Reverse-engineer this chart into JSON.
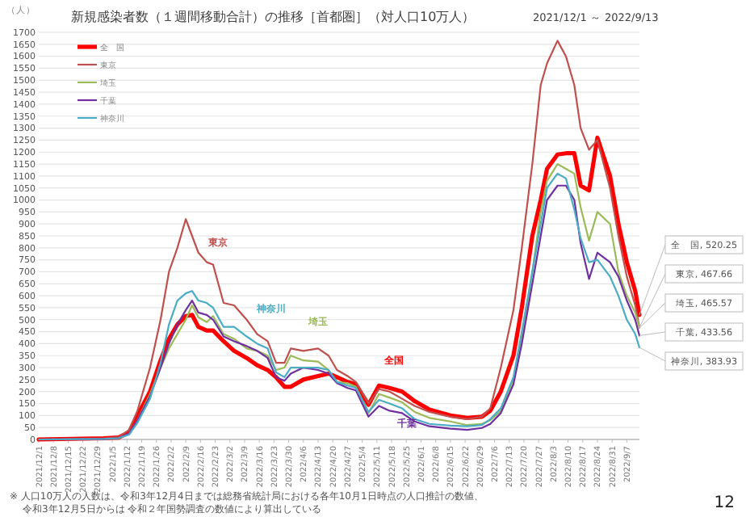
{
  "chart_data": {
    "type": "line",
    "title": "新規感染者数（１週間移動合計）の推移［首都圏］（対人口10万人）",
    "subtitle": "2021/12/1 ～ 2022/9/13",
    "ylabel": "（人）",
    "x": [
      "2021-12-01",
      "2022-01-01",
      "2022-01-08",
      "2022-01-13",
      "2022-01-17",
      "2022-01-23",
      "2022-01-28",
      "2022-02-01",
      "2022-02-05",
      "2022-02-09",
      "2022-02-12",
      "2022-02-15",
      "2022-02-19",
      "2022-02-22",
      "2022-02-27",
      "2022-03-04",
      "2022-03-10",
      "2022-03-15",
      "2022-03-20",
      "2022-03-24",
      "2022-03-28",
      "2022-03-31",
      "2022-04-06",
      "2022-04-13",
      "2022-04-18",
      "2022-04-22",
      "2022-04-27",
      "2022-05-01",
      "2022-05-07",
      "2022-05-12",
      "2022-05-17",
      "2022-05-23",
      "2022-05-29",
      "2022-06-05",
      "2022-06-15",
      "2022-06-23",
      "2022-06-30",
      "2022-07-04",
      "2022-07-09",
      "2022-07-15",
      "2022-07-19",
      "2022-07-24",
      "2022-07-28",
      "2022-07-31",
      "2022-08-05",
      "2022-08-09",
      "2022-08-13",
      "2022-08-16",
      "2022-08-20",
      "2022-08-24",
      "2022-08-30",
      "2022-09-03",
      "2022-09-07",
      "2022-09-11",
      "2022-09-13"
    ],
    "series": [
      {
        "name": "全　国",
        "color": "#ff0000",
        "values": [
          0,
          5,
          8,
          30,
          100,
          200,
          330,
          420,
          480,
          515,
          520,
          470,
          455,
          455,
          410,
          370,
          340,
          310,
          290,
          260,
          220,
          220,
          250,
          265,
          275,
          260,
          240,
          230,
          145,
          225,
          215,
          200,
          160,
          125,
          100,
          90,
          95,
          120,
          200,
          350,
          550,
          850,
          1000,
          1130,
          1190,
          1195,
          1195,
          1060,
          1040,
          1260,
          1100,
          900,
          740,
          620,
          520.25
        ]
      },
      {
        "name": "東京",
        "color": "#c0504d",
        "values": [
          0,
          5,
          10,
          40,
          120,
          300,
          500,
          700,
          800,
          920,
          850,
          780,
          740,
          730,
          570,
          560,
          500,
          440,
          410,
          320,
          320,
          380,
          370,
          380,
          350,
          290,
          265,
          240,
          150,
          210,
          200,
          170,
          140,
          115,
          95,
          85,
          95,
          130,
          300,
          540,
          800,
          1150,
          1480,
          1570,
          1665,
          1600,
          1480,
          1300,
          1210,
          1250,
          1050,
          850,
          680,
          560,
          467.66
        ]
      },
      {
        "name": "埼玉",
        "color": "#9bbb59",
        "values": [
          null,
          null,
          null,
          25,
          80,
          190,
          300,
          380,
          440,
          500,
          560,
          510,
          490,
          515,
          440,
          420,
          380,
          370,
          350,
          290,
          300,
          350,
          330,
          325,
          290,
          240,
          235,
          220,
          110,
          190,
          175,
          155,
          115,
          90,
          75,
          60,
          65,
          80,
          120,
          250,
          420,
          700,
          950,
          1080,
          1150,
          1130,
          1110,
          970,
          830,
          950,
          900,
          700,
          600,
          530,
          465.57
        ]
      },
      {
        "name": "千葉",
        "color": "#7030a0",
        "values": [
          0,
          2,
          5,
          25,
          80,
          180,
          300,
          400,
          480,
          540,
          580,
          530,
          520,
          500,
          430,
          410,
          390,
          370,
          340,
          260,
          245,
          275,
          300,
          290,
          275,
          235,
          215,
          205,
          95,
          140,
          120,
          110,
          75,
          55,
          45,
          40,
          48,
          65,
          110,
          230,
          400,
          650,
          850,
          1000,
          1060,
          1060,
          1000,
          820,
          670,
          780,
          740,
          680,
          580,
          500,
          433.56
        ]
      },
      {
        "name": "神奈川",
        "color": "#4bacc6",
        "values": [
          0,
          2,
          5,
          20,
          70,
          170,
          320,
          480,
          580,
          610,
          620,
          580,
          570,
          550,
          470,
          470,
          430,
          400,
          380,
          280,
          260,
          300,
          300,
          300,
          290,
          240,
          225,
          215,
          115,
          165,
          150,
          130,
          85,
          65,
          58,
          55,
          60,
          85,
          130,
          260,
          450,
          700,
          900,
          1050,
          1110,
          1090,
          960,
          840,
          740,
          750,
          680,
          600,
          500,
          440,
          383.93
        ]
      }
    ],
    "xlim": [
      "2021-12-01",
      "2022-09-13"
    ],
    "xticks": [
      {
        "value": "2021-12-01",
        "label": "2021/12/1"
      },
      {
        "value": "2021-12-08",
        "label": "2021/12/8"
      },
      {
        "value": "2021-12-15",
        "label": "2021/12/15"
      },
      {
        "value": "2021-12-22",
        "label": "2021/12/22"
      },
      {
        "value": "2021-12-29",
        "label": "2021/12/29"
      },
      {
        "value": "2022-01-05",
        "label": "2022/1/5"
      },
      {
        "value": "2022-01-12",
        "label": "2022/1/12"
      },
      {
        "value": "2022-01-19",
        "label": "2022/1/19"
      },
      {
        "value": "2022-01-26",
        "label": "2022/1/26"
      },
      {
        "value": "2022-02-02",
        "label": "2022/2/2"
      },
      {
        "value": "2022-02-09",
        "label": "2022/2/9"
      },
      {
        "value": "2022-02-16",
        "label": "2022/2/16"
      },
      {
        "value": "2022-02-23",
        "label": "2022/2/23"
      },
      {
        "value": "2022-03-02",
        "label": "2022/3/2"
      },
      {
        "value": "2022-03-09",
        "label": "2022/3/9"
      },
      {
        "value": "2022-03-16",
        "label": "2022/3/16"
      },
      {
        "value": "2022-03-23",
        "label": "2022/3/23"
      },
      {
        "value": "2022-03-30",
        "label": "2022/3/30"
      },
      {
        "value": "2022-04-06",
        "label": "2022/4/6"
      },
      {
        "value": "2022-04-13",
        "label": "2022/4/13"
      },
      {
        "value": "2022-04-20",
        "label": "2022/4/20"
      },
      {
        "value": "2022-04-27",
        "label": "2022/4/27"
      },
      {
        "value": "2022-05-04",
        "label": "2022/5/4"
      },
      {
        "value": "2022-05-11",
        "label": "2022/5/11"
      },
      {
        "value": "2022-05-18",
        "label": "2022/5/18"
      },
      {
        "value": "2022-05-25",
        "label": "2022/5/25"
      },
      {
        "value": "2022-06-01",
        "label": "2022/6/1"
      },
      {
        "value": "2022-06-08",
        "label": "2022/6/8"
      },
      {
        "value": "2022-06-15",
        "label": "2022/6/15"
      },
      {
        "value": "2022-06-22",
        "label": "2022/6/22"
      },
      {
        "value": "2022-06-29",
        "label": "2022/6/29"
      },
      {
        "value": "2022-07-06",
        "label": "2022/7/6"
      },
      {
        "value": "2022-07-13",
        "label": "2022/7/13"
      },
      {
        "value": "2022-07-20",
        "label": "2022/7/20"
      },
      {
        "value": "2022-07-27",
        "label": "2022/7/27"
      },
      {
        "value": "2022-08-03",
        "label": "2022/8/3"
      },
      {
        "value": "2022-08-10",
        "label": "2022/8/10"
      },
      {
        "value": "2022-08-17",
        "label": "2022/8/17"
      },
      {
        "value": "2022-08-24",
        "label": "2022/8/24"
      },
      {
        "value": "2022-08-31",
        "label": "2022/8/31"
      },
      {
        "value": "2022-09-07",
        "label": "2022/9/7"
      }
    ],
    "ylim": [
      0,
      1700
    ],
    "yticks": [
      0,
      50,
      100,
      150,
      200,
      250,
      300,
      350,
      400,
      450,
      500,
      550,
      600,
      650,
      700,
      750,
      800,
      850,
      900,
      950,
      1000,
      1050,
      1100,
      1150,
      1200,
      1250,
      1300,
      1350,
      1400,
      1450,
      1500,
      1550,
      1600,
      1650,
      1700
    ],
    "grid": "y",
    "legend": "top left",
    "marker": "none",
    "line_style": "solid",
    "annotations": [
      "全国",
      "東京",
      "埼玉",
      "千葉",
      "神奈川",
      {
        "text": "全　国, 520.25",
        "x": "2022-09-13",
        "y": 520.25
      },
      {
        "text": "東京, 467.66",
        "x": "2022-09-13",
        "y": 467.66
      },
      {
        "text": "埼玉, 465.57",
        "x": "2022-09-13",
        "y": 465.57
      },
      {
        "text": "千葉, 433.56",
        "x": "2022-09-13",
        "y": 433.56
      },
      {
        "text": "神奈川, 383.93",
        "x": "2022-09-13",
        "y": 383.93
      },
      "※ 人口10万人の人数は、令和3年12月4日までは総務省統計局における各年10月1日時点の人口推計の数値、",
      "令和3年12月5日からは 令和２年国勢調査の数値により算出している",
      "12"
    ]
  }
}
